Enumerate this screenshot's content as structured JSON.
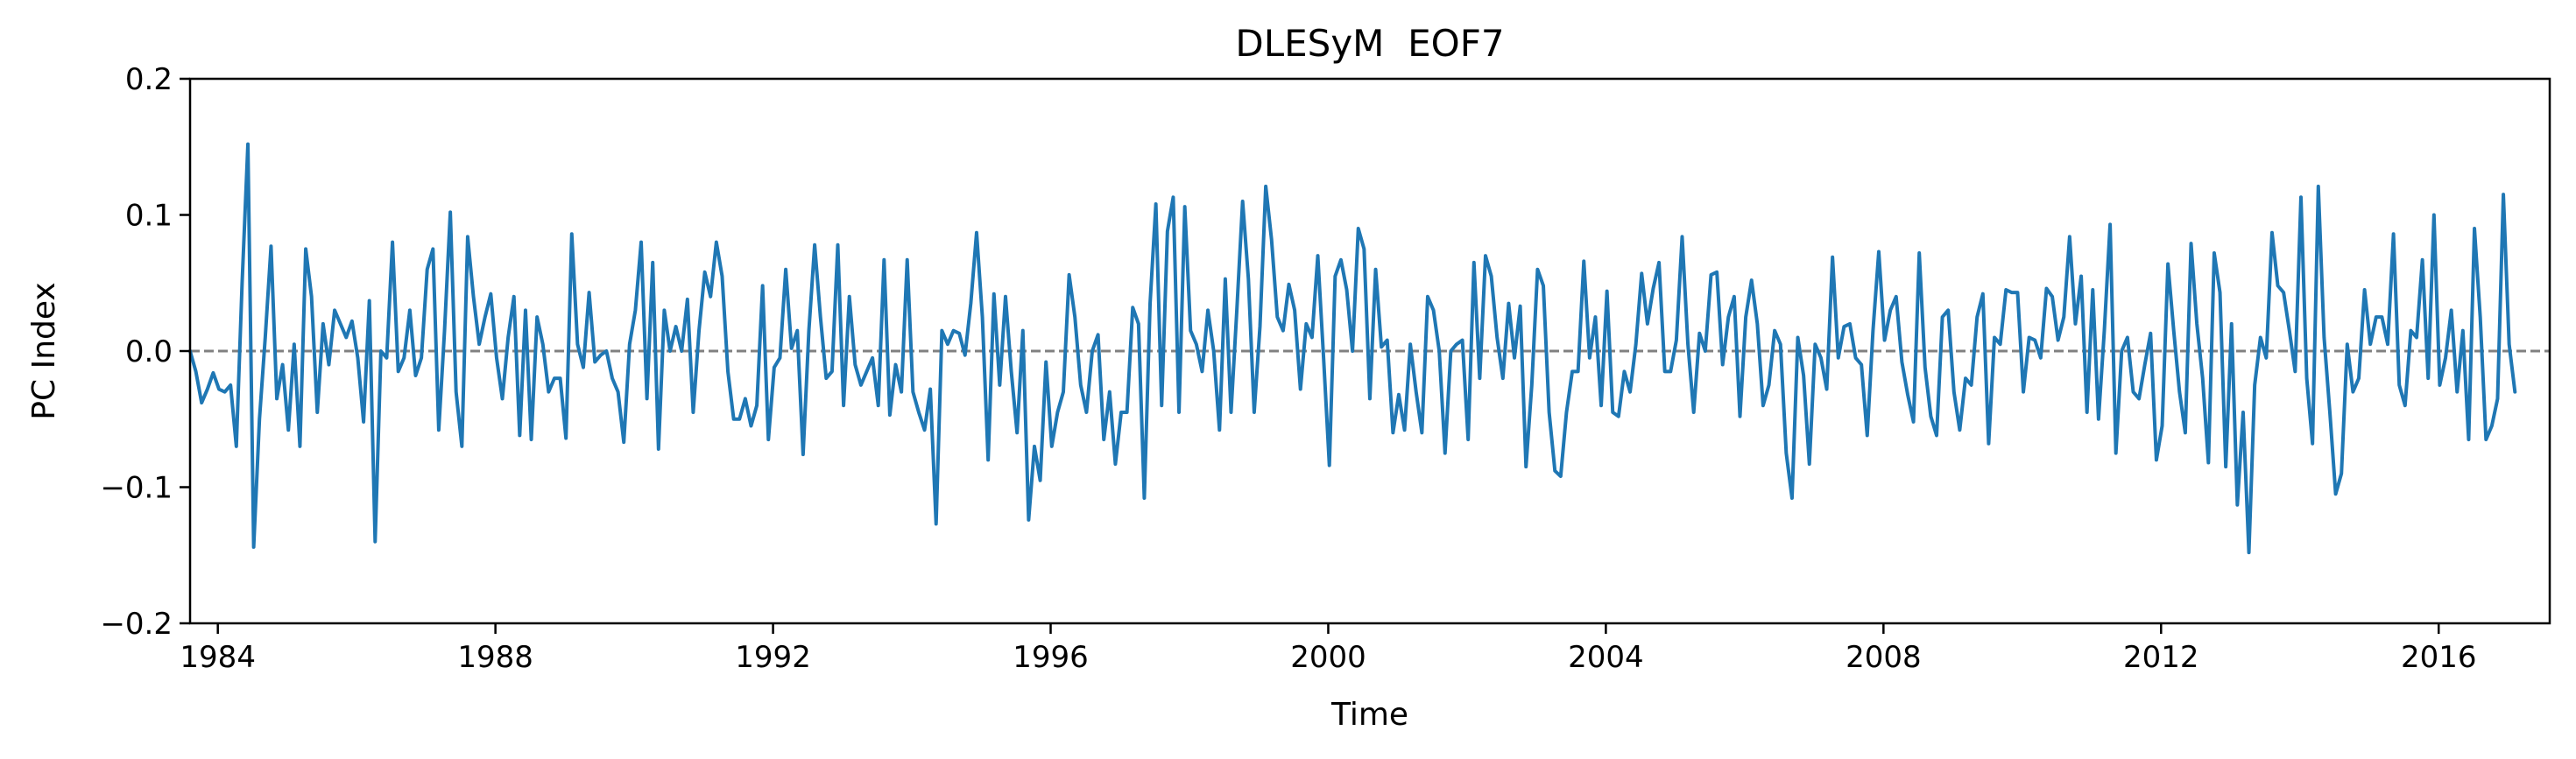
{
  "chart_data": {
    "type": "line",
    "title": "DLESyM  EOF7",
    "xlabel": "Time",
    "ylabel": "PC Index",
    "xlim": [
      1983.6,
      2017.6
    ],
    "ylim": [
      -0.2,
      0.2
    ],
    "x_ticks": [
      1984,
      1988,
      1992,
      1996,
      2000,
      2004,
      2008,
      2012,
      2016
    ],
    "y_ticks": [
      0.2,
      0.1,
      0.0,
      -0.1,
      -0.2
    ],
    "y_tick_labels": [
      "0.2",
      "0.1",
      "0.0",
      "−0.1",
      "−0.2"
    ],
    "reference_line": {
      "y": 0.0,
      "style": "dashed",
      "color": "#808080"
    },
    "grid": false,
    "series": [
      {
        "color": "#1f77b4",
        "x_start": 1983.6,
        "x_step": 0.08333,
        "values": [
          0.0,
          -0.015,
          -0.038,
          -0.028,
          -0.016,
          -0.028,
          -0.03,
          -0.025,
          -0.07,
          0.05,
          0.152,
          -0.144,
          -0.05,
          0.01,
          0.077,
          -0.035,
          -0.01,
          -0.058,
          0.005,
          -0.07,
          0.075,
          0.04,
          -0.045,
          0.02,
          -0.01,
          0.03,
          0.02,
          0.01,
          0.022,
          -0.005,
          -0.052,
          0.037,
          -0.14,
          0.0,
          -0.005,
          0.08,
          -0.015,
          -0.005,
          0.03,
          -0.018,
          -0.005,
          0.06,
          0.075,
          -0.058,
          0.015,
          0.102,
          -0.03,
          -0.07,
          0.084,
          0.04,
          0.005,
          0.025,
          0.042,
          -0.005,
          -0.035,
          0.01,
          0.04,
          -0.062,
          0.03,
          -0.065,
          0.025,
          0.005,
          -0.03,
          -0.02,
          -0.02,
          -0.064,
          0.086,
          0.005,
          -0.012,
          0.043,
          -0.008,
          -0.003,
          0.0,
          -0.02,
          -0.03,
          -0.067,
          0.005,
          0.03,
          0.08,
          -0.035,
          0.065,
          -0.072,
          0.03,
          0.0,
          0.018,
          0.0,
          0.038,
          -0.045,
          0.015,
          0.058,
          0.04,
          0.08,
          0.055,
          -0.015,
          -0.05,
          -0.05,
          -0.035,
          -0.055,
          -0.04,
          0.048,
          -0.065,
          -0.012,
          -0.005,
          0.06,
          0.002,
          0.015,
          -0.076,
          0.015,
          0.078,
          0.025,
          -0.02,
          -0.015,
          0.078,
          -0.04,
          0.04,
          -0.01,
          -0.025,
          -0.015,
          -0.005,
          -0.04,
          0.067,
          -0.047,
          -0.01,
          -0.03,
          0.067,
          -0.03,
          -0.045,
          -0.058,
          -0.028,
          -0.127,
          0.015,
          0.005,
          0.015,
          0.013,
          -0.003,
          0.035,
          0.087,
          0.025,
          -0.08,
          0.042,
          -0.025,
          0.04,
          -0.015,
          -0.06,
          0.015,
          -0.124,
          -0.07,
          -0.095,
          -0.008,
          -0.07,
          -0.045,
          -0.03,
          0.056,
          0.025,
          -0.025,
          -0.045,
          0.0,
          0.012,
          -0.065,
          -0.03,
          -0.083,
          -0.045,
          -0.045,
          0.032,
          0.02,
          -0.108,
          0.035,
          0.108,
          -0.04,
          0.088,
          0.113,
          -0.045,
          0.106,
          0.015,
          0.005,
          -0.015,
          0.03,
          0.0,
          -0.058,
          0.053,
          -0.045,
          0.03,
          0.11,
          0.053,
          -0.045,
          0.018,
          0.121,
          0.082,
          0.025,
          0.015,
          0.049,
          0.03,
          -0.028,
          0.02,
          0.01,
          0.07,
          -0.005,
          -0.084,
          0.055,
          0.067,
          0.045,
          0.0,
          0.09,
          0.075,
          -0.035,
          0.06,
          0.003,
          0.008,
          -0.06,
          -0.032,
          -0.058,
          0.005,
          -0.03,
          -0.06,
          0.04,
          0.03,
          0.0,
          -0.075,
          0.0,
          0.005,
          0.008,
          -0.065,
          0.065,
          -0.02,
          0.07,
          0.055,
          0.01,
          -0.02,
          0.035,
          -0.005,
          0.033,
          -0.085,
          -0.025,
          0.06,
          0.048,
          -0.045,
          -0.088,
          -0.092,
          -0.045,
          -0.015,
          -0.015,
          0.066,
          -0.005,
          0.025,
          -0.04,
          0.044,
          -0.045,
          -0.048,
          -0.015,
          -0.03,
          0.005,
          0.057,
          0.02,
          0.046,
          0.065,
          -0.015,
          -0.015,
          0.008,
          0.084,
          0.005,
          -0.045,
          0.013,
          0.0,
          0.056,
          0.058,
          -0.01,
          0.025,
          0.04,
          -0.048,
          0.025,
          0.052,
          0.02,
          -0.04,
          -0.025,
          0.015,
          0.005,
          -0.075,
          -0.108,
          0.01,
          -0.018,
          -0.083,
          0.005,
          -0.005,
          -0.028,
          0.069,
          -0.005,
          0.018,
          0.02,
          -0.005,
          -0.01,
          -0.062,
          0.015,
          0.073,
          0.008,
          0.03,
          0.04,
          -0.008,
          -0.032,
          -0.052,
          0.072,
          -0.012,
          -0.048,
          -0.062,
          0.025,
          0.03,
          -0.03,
          -0.058,
          -0.02,
          -0.025,
          0.025,
          0.042,
          -0.068,
          0.01,
          0.005,
          0.045,
          0.043,
          0.043,
          -0.03,
          0.01,
          0.008,
          -0.005,
          0.046,
          0.04,
          0.008,
          0.025,
          0.084,
          0.02,
          0.055,
          -0.045,
          0.045,
          -0.05,
          0.015,
          0.093,
          -0.075,
          0.0,
          0.01,
          -0.03,
          -0.035,
          -0.01,
          0.013,
          -0.08,
          -0.055,
          0.064,
          0.015,
          -0.03,
          -0.06,
          0.079,
          0.02,
          -0.02,
          -0.082,
          0.072,
          0.043,
          -0.085,
          0.02,
          -0.113,
          -0.045,
          -0.148,
          -0.025,
          0.01,
          -0.005,
          0.087,
          0.048,
          0.043,
          0.015,
          -0.015,
          0.113,
          -0.02,
          -0.068,
          0.121,
          0.01,
          -0.045,
          -0.105,
          -0.09,
          0.005,
          -0.03,
          -0.02,
          0.045,
          0.005,
          0.025,
          0.025,
          0.005,
          0.086,
          -0.025,
          -0.04,
          0.015,
          0.01,
          0.067,
          -0.02,
          0.1,
          -0.025,
          -0.005,
          0.03,
          -0.03,
          0.015,
          -0.065,
          0.09,
          0.025,
          -0.065,
          -0.055,
          -0.035,
          0.115,
          0.005,
          -0.03
        ]
      }
    ]
  }
}
